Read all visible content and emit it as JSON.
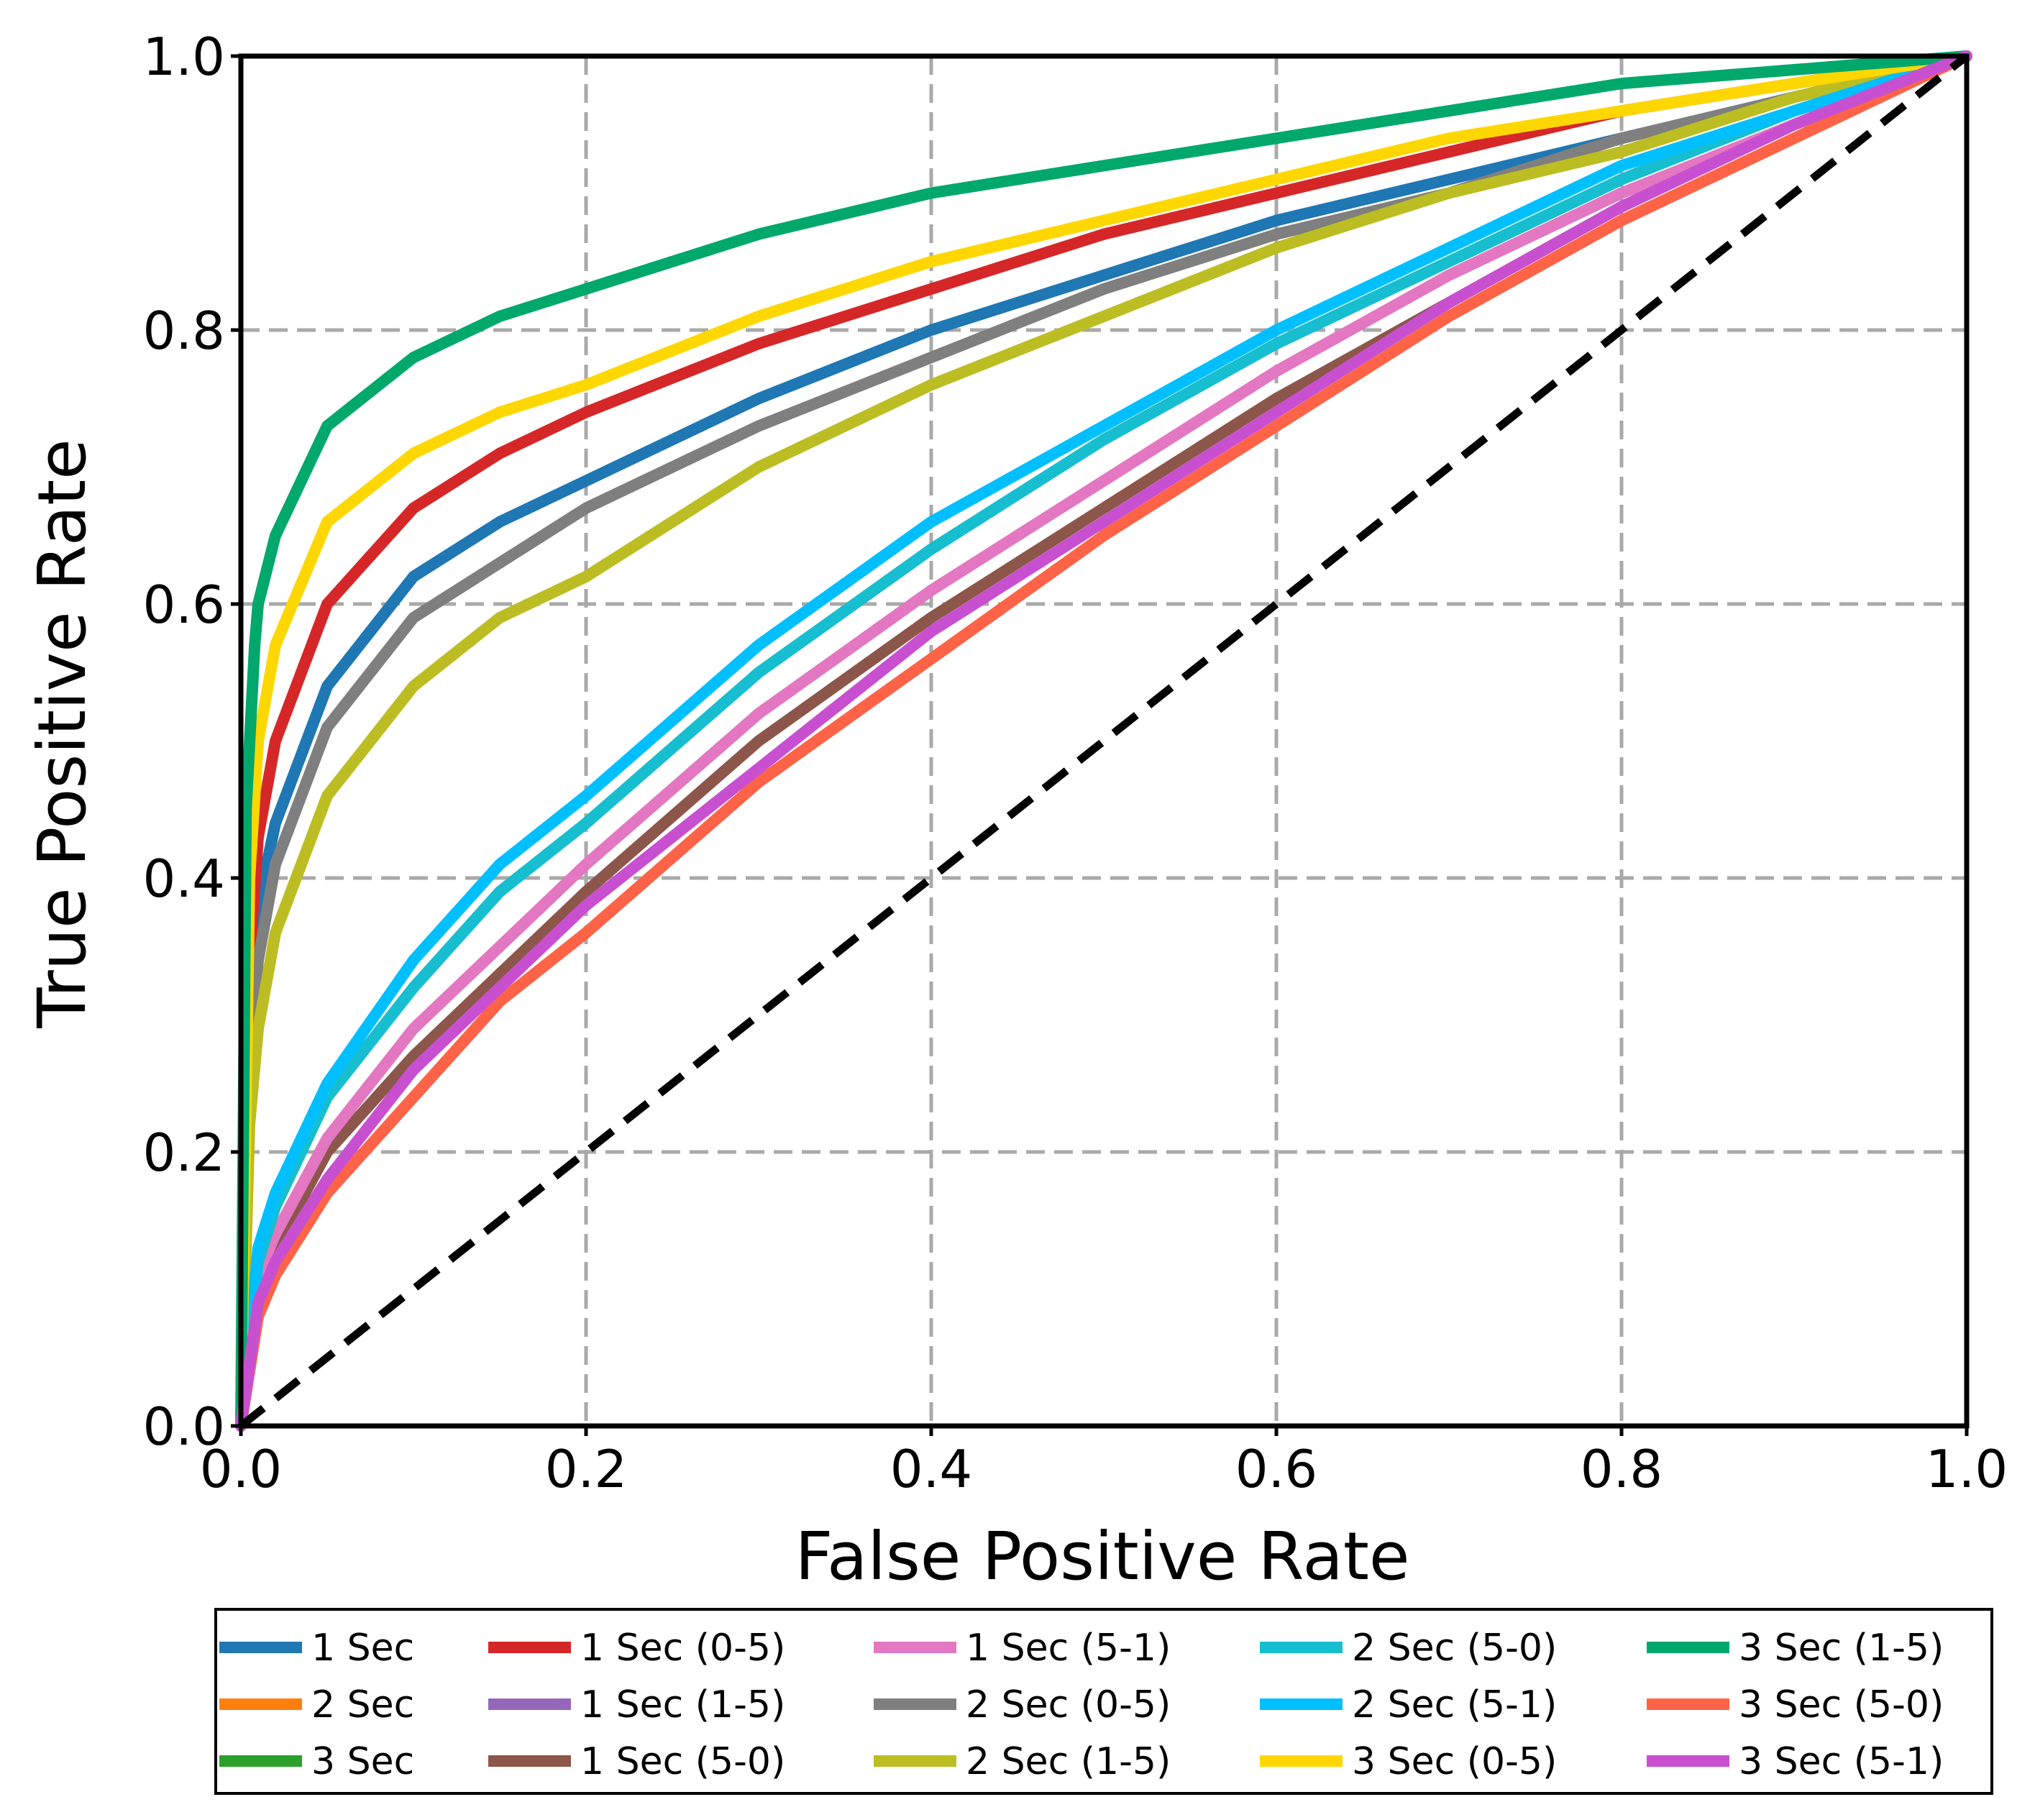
{
  "chart_data": {
    "type": "line",
    "title": "",
    "xlabel": "False Positive Rate",
    "ylabel": "True Positive Rate",
    "xlim": [
      0.0,
      1.0
    ],
    "ylim": [
      0.0,
      1.0
    ],
    "xticks": [
      "0.0",
      "0.2",
      "0.4",
      "0.6",
      "0.8",
      "1.0"
    ],
    "yticks": [
      "0.0",
      "0.2",
      "0.4",
      "0.6",
      "0.8",
      "1.0"
    ],
    "grid": true,
    "legend_position": "bottom",
    "reference_line": {
      "x": [
        0.0,
        1.0
      ],
      "y": [
        0.0,
        1.0
      ],
      "style": "dashed",
      "color": "#000000"
    },
    "series": [
      {
        "name": "1 Sec",
        "color": "#1f77b4",
        "x": [
          0.0,
          0.005,
          0.01,
          0.02,
          0.05,
          0.1,
          0.15,
          0.2,
          0.3,
          0.4,
          0.5,
          0.6,
          0.7,
          0.8,
          0.9,
          1.0
        ],
        "y": [
          0.0,
          0.3,
          0.38,
          0.44,
          0.54,
          0.62,
          0.66,
          0.69,
          0.75,
          0.8,
          0.84,
          0.88,
          0.91,
          0.94,
          0.97,
          1.0
        ]
      },
      {
        "name": "2 Sec",
        "color": "#ff7f0e",
        "x": [],
        "y": []
      },
      {
        "name": "3 Sec",
        "color": "#2ca02c",
        "x": [],
        "y": []
      },
      {
        "name": "1 Sec (0-5)",
        "color": "#d62728",
        "x": [
          0.0,
          0.005,
          0.01,
          0.02,
          0.05,
          0.1,
          0.15,
          0.2,
          0.3,
          0.4,
          0.5,
          0.6,
          0.7,
          0.8,
          0.9,
          1.0
        ],
        "y": [
          0.0,
          0.34,
          0.43,
          0.5,
          0.6,
          0.67,
          0.71,
          0.74,
          0.79,
          0.83,
          0.87,
          0.9,
          0.93,
          0.96,
          0.98,
          1.0
        ]
      },
      {
        "name": "1 Sec (1-5)",
        "color": "#9467bd",
        "x": [],
        "y": []
      },
      {
        "name": "1 Sec (5-0)",
        "color": "#8c564b",
        "x": [
          0.0,
          0.01,
          0.02,
          0.05,
          0.1,
          0.15,
          0.2,
          0.3,
          0.4,
          0.5,
          0.6,
          0.7,
          0.8,
          0.9,
          1.0
        ],
        "y": [
          0.0,
          0.1,
          0.13,
          0.2,
          0.27,
          0.33,
          0.39,
          0.5,
          0.59,
          0.67,
          0.75,
          0.82,
          0.89,
          0.95,
          1.0
        ]
      },
      {
        "name": "1 Sec (5-1)",
        "color": "#e377c2",
        "x": [
          0.0,
          0.01,
          0.02,
          0.05,
          0.1,
          0.15,
          0.2,
          0.3,
          0.4,
          0.5,
          0.6,
          0.7,
          0.8,
          0.9,
          1.0
        ],
        "y": [
          0.0,
          0.11,
          0.14,
          0.21,
          0.29,
          0.35,
          0.41,
          0.52,
          0.61,
          0.69,
          0.77,
          0.84,
          0.9,
          0.95,
          1.0
        ]
      },
      {
        "name": "2 Sec (0-5)",
        "color": "#7f7f7f",
        "x": [
          0.0,
          0.005,
          0.01,
          0.02,
          0.05,
          0.1,
          0.15,
          0.2,
          0.3,
          0.4,
          0.5,
          0.6,
          0.7,
          0.8,
          0.9,
          1.0
        ],
        "y": [
          0.0,
          0.27,
          0.34,
          0.41,
          0.51,
          0.59,
          0.63,
          0.67,
          0.73,
          0.78,
          0.83,
          0.87,
          0.9,
          0.94,
          0.97,
          1.0
        ]
      },
      {
        "name": "2 Sec (1-5)",
        "color": "#bcbd22",
        "x": [
          0.0,
          0.005,
          0.01,
          0.02,
          0.05,
          0.1,
          0.15,
          0.2,
          0.3,
          0.4,
          0.5,
          0.6,
          0.7,
          0.8,
          0.9,
          1.0
        ],
        "y": [
          0.0,
          0.22,
          0.29,
          0.36,
          0.46,
          0.54,
          0.59,
          0.62,
          0.7,
          0.76,
          0.81,
          0.86,
          0.9,
          0.93,
          0.97,
          1.0
        ]
      },
      {
        "name": "2 Sec (5-0)",
        "color": "#17becf",
        "x": [
          0.0,
          0.01,
          0.02,
          0.05,
          0.1,
          0.15,
          0.2,
          0.3,
          0.4,
          0.5,
          0.6,
          0.7,
          0.8,
          0.9,
          1.0
        ],
        "y": [
          0.0,
          0.12,
          0.16,
          0.24,
          0.32,
          0.39,
          0.44,
          0.55,
          0.64,
          0.72,
          0.79,
          0.85,
          0.91,
          0.96,
          1.0
        ]
      },
      {
        "name": "2 Sec (5-1)",
        "color": "#00bfff",
        "x": [
          0.0,
          0.01,
          0.02,
          0.05,
          0.1,
          0.15,
          0.2,
          0.3,
          0.4,
          0.5,
          0.6,
          0.7,
          0.8,
          0.9,
          1.0
        ],
        "y": [
          0.0,
          0.13,
          0.17,
          0.25,
          0.34,
          0.41,
          0.46,
          0.57,
          0.66,
          0.73,
          0.8,
          0.86,
          0.92,
          0.96,
          1.0
        ]
      },
      {
        "name": "3 Sec (0-5)",
        "color": "#ffd700",
        "x": [
          0.0,
          0.005,
          0.01,
          0.02,
          0.05,
          0.1,
          0.15,
          0.2,
          0.3,
          0.4,
          0.5,
          0.6,
          0.7,
          0.8,
          0.9,
          1.0
        ],
        "y": [
          0.0,
          0.4,
          0.5,
          0.57,
          0.66,
          0.71,
          0.74,
          0.76,
          0.81,
          0.85,
          0.88,
          0.91,
          0.94,
          0.96,
          0.98,
          1.0
        ]
      },
      {
        "name": "3 Sec (1-5)",
        "color": "#00a86b",
        "x": [
          0.0,
          0.003,
          0.008,
          0.01,
          0.02,
          0.05,
          0.1,
          0.15,
          0.2,
          0.3,
          0.4,
          0.5,
          0.6,
          0.7,
          0.8,
          0.9,
          1.0
        ],
        "y": [
          0.0,
          0.45,
          0.57,
          0.6,
          0.65,
          0.73,
          0.78,
          0.81,
          0.83,
          0.87,
          0.9,
          0.92,
          0.94,
          0.96,
          0.98,
          0.99,
          1.0
        ]
      },
      {
        "name": "3 Sec (5-0)",
        "color": "#ff6347",
        "x": [
          0.0,
          0.01,
          0.02,
          0.05,
          0.1,
          0.15,
          0.2,
          0.3,
          0.4,
          0.5,
          0.6,
          0.7,
          0.8,
          0.9,
          1.0
        ],
        "y": [
          0.0,
          0.08,
          0.11,
          0.17,
          0.24,
          0.31,
          0.36,
          0.47,
          0.56,
          0.65,
          0.73,
          0.81,
          0.88,
          0.94,
          1.0
        ]
      },
      {
        "name": "3 Sec (5-1)",
        "color": "#c850d0",
        "x": [
          0.0,
          0.01,
          0.02,
          0.05,
          0.1,
          0.15,
          0.2,
          0.3,
          0.4,
          0.5,
          0.6,
          0.7,
          0.8,
          0.9,
          1.0
        ],
        "y": [
          0.0,
          0.09,
          0.12,
          0.18,
          0.26,
          0.32,
          0.38,
          0.48,
          0.58,
          0.66,
          0.74,
          0.82,
          0.89,
          0.95,
          1.0
        ]
      }
    ],
    "legend_columns": [
      [
        "1 Sec",
        "2 Sec",
        "3 Sec"
      ],
      [
        "1 Sec (0-5)",
        "1 Sec (1-5)",
        "1 Sec (5-0)"
      ],
      [
        "1 Sec (5-1)",
        "2 Sec (0-5)",
        "2 Sec (1-5)"
      ],
      [
        "2 Sec (5-0)",
        "2 Sec (5-1)",
        "3 Sec (0-5)"
      ],
      [
        "3 Sec (1-5)",
        "3 Sec (5-0)",
        "3 Sec (5-1)"
      ]
    ]
  }
}
